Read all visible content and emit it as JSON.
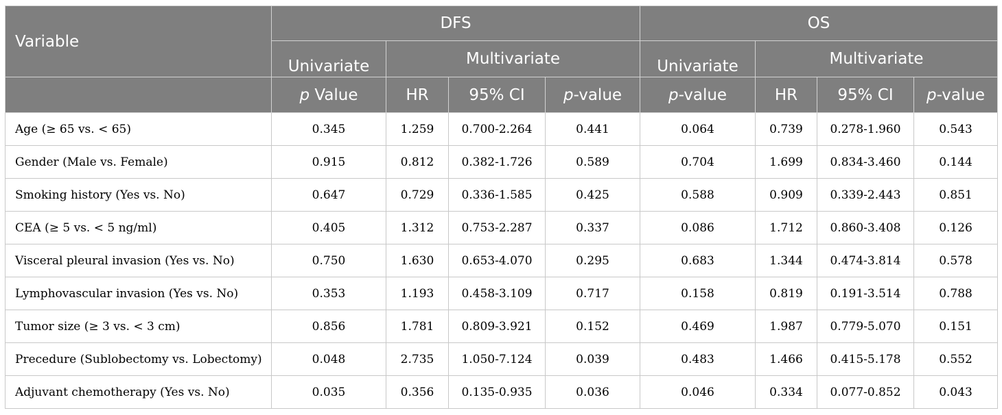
{
  "header": {
    "variable": "Variable",
    "groups": [
      "DFS",
      "OS"
    ],
    "univariate": "Univariate",
    "multivariate": "Multivariate",
    "dfs_pvalue_italic": "p",
    "dfs_pvalue_rest": " Value",
    "os_pvalue_italic": "p",
    "os_pvalue_rest": "-value",
    "hr": "HR",
    "ci": "95% CI",
    "mv_pvalue_italic": "p",
    "mv_pvalue_rest": "-value"
  },
  "rows": [
    {
      "variable": "Age (≥ 65 vs. < 65)",
      "dfs_uni_p": "0.345",
      "dfs_hr": "1.259",
      "dfs_ci": "0.700-2.264",
      "dfs_p": "0.441",
      "os_uni_p": "0.064",
      "os_hr": "0.739",
      "os_ci": "0.278-1.960",
      "os_p": "0.543"
    },
    {
      "variable": "Gender (Male vs. Female)",
      "dfs_uni_p": "0.915",
      "dfs_hr": "0.812",
      "dfs_ci": "0.382-1.726",
      "dfs_p": "0.589",
      "os_uni_p": "0.704",
      "os_hr": "1.699",
      "os_ci": "0.834-3.460",
      "os_p": "0.144"
    },
    {
      "variable": "Smoking history (Yes vs. No)",
      "dfs_uni_p": "0.647",
      "dfs_hr": "0.729",
      "dfs_ci": "0.336-1.585",
      "dfs_p": "0.425",
      "os_uni_p": "0.588",
      "os_hr": "0.909",
      "os_ci": "0.339-2.443",
      "os_p": "0.851"
    },
    {
      "variable": "CEA (≥ 5 vs. < 5 ng/ml)",
      "dfs_uni_p": "0.405",
      "dfs_hr": "1.312",
      "dfs_ci": "0.753-2.287",
      "dfs_p": "0.337",
      "os_uni_p": "0.086",
      "os_hr": "1.712",
      "os_ci": "0.860-3.408",
      "os_p": "0.126"
    },
    {
      "variable": "Visceral pleural invasion (Yes vs. No)",
      "dfs_uni_p": "0.750",
      "dfs_hr": "1.630",
      "dfs_ci": "0.653-4.070",
      "dfs_p": "0.295",
      "os_uni_p": "0.683",
      "os_hr": "1.344",
      "os_ci": "0.474-3.814",
      "os_p": "0.578"
    },
    {
      "variable": "Lymphovascular invasion (Yes vs. No)",
      "dfs_uni_p": "0.353",
      "dfs_hr": "1.193",
      "dfs_ci": "0.458-3.109",
      "dfs_p": "0.717",
      "os_uni_p": "0.158",
      "os_hr": "0.819",
      "os_ci": "0.191-3.514",
      "os_p": "0.788"
    },
    {
      "variable": "Tumor size (≥ 3 vs. < 3 cm)",
      "dfs_uni_p": "0.856",
      "dfs_hr": "1.781",
      "dfs_ci": "0.809-3.921",
      "dfs_p": "0.152",
      "os_uni_p": "0.469",
      "os_hr": "1.987",
      "os_ci": "0.779-5.070",
      "os_p": "0.151"
    },
    {
      "variable": "Precedure (Sublobectomy vs. Lobectomy)",
      "dfs_uni_p": "0.048",
      "dfs_hr": "2.735",
      "dfs_ci": "1.050-7.124",
      "dfs_p": "0.039",
      "os_uni_p": "0.483",
      "os_hr": "1.466",
      "os_ci": "0.415-5.178",
      "os_p": "0.552"
    },
    {
      "variable": "Adjuvant chemotherapy (Yes vs. No)",
      "dfs_uni_p": "0.035",
      "dfs_hr": "0.356",
      "dfs_ci": "0.135-0.935",
      "dfs_p": "0.036",
      "os_uni_p": "0.046",
      "os_hr": "0.334",
      "os_ci": "0.077-0.852",
      "os_p": "0.043"
    }
  ],
  "colors": {
    "header_bg": "#7f7f7f",
    "header_text": "#ffffff",
    "grid": "#c8c8c8"
  }
}
